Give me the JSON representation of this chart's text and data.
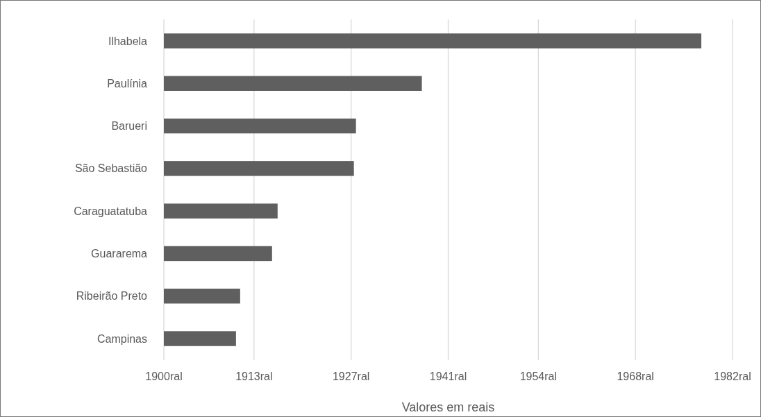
{
  "chart_data": {
    "type": "bar",
    "orientation": "horizontal",
    "xlabel": "Valores em reais",
    "categories": [
      "Ilhabela",
      "Paulínia",
      "Barueri",
      "São Sebastião",
      "Caraguatatuba",
      "Guararema",
      "Ribeirão Preto",
      "Campinas"
    ],
    "values": [
      1977.5,
      1937.2,
      1927.7,
      1927.4,
      1916.4,
      1915.6,
      1911.0,
      1910.4
    ],
    "color": "#5f5f5f",
    "xlim": [
      1900,
      1982
    ],
    "xticks": [
      {
        "value": 1900,
        "label": "1900ral"
      },
      {
        "value": 1913,
        "label": "1913ral"
      },
      {
        "value": 1927,
        "label": "1927ral"
      },
      {
        "value": 1941,
        "label": "1941ral"
      },
      {
        "value": 1954,
        "label": "1954ral"
      },
      {
        "value": 1968,
        "label": "1968ral"
      },
      {
        "value": 1982,
        "label": "1982ral"
      }
    ],
    "grid": "x"
  }
}
